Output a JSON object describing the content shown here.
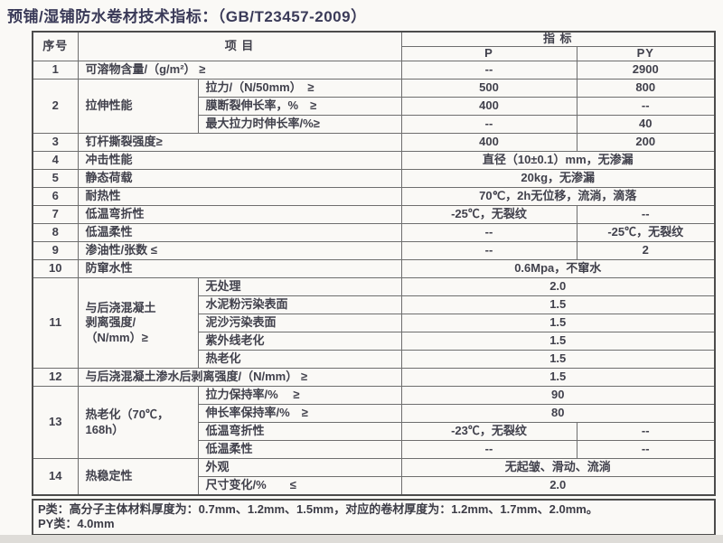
{
  "page": {
    "title": "预铺/湿铺防水卷材技术指标：（GB/T23457-2009）"
  },
  "colors": {
    "title_text": "#3a3a58",
    "table_text": "#41414c",
    "border": "#4c4c4c",
    "page_background": "#faf9f6"
  },
  "table": {
    "header": {
      "no": "序号",
      "item": "项 目",
      "index": "指 标",
      "p": "P",
      "py": "PY"
    },
    "rows": [
      {
        "no": "1",
        "item": "可溶物含量/（g/m²） ≥",
        "p": "--",
        "py": "2900"
      },
      {
        "no": "2",
        "cat": "拉伸性能",
        "sub": "拉力/（N/50mm）　≥",
        "p": "500",
        "py": "800"
      },
      {
        "sub": "膜断裂伸长率，%　≥",
        "p": "400",
        "py": "--"
      },
      {
        "sub": "最大拉力时伸长率/%≥",
        "p": "--",
        "py": "40"
      },
      {
        "no": "3",
        "item": "钉杆撕裂强度≥",
        "p": "400",
        "py": "200"
      },
      {
        "no": "4",
        "item": "冲击性能",
        "span": "直径（10±0.1）mm，无渗漏"
      },
      {
        "no": "5",
        "item": "静态荷载",
        "span": "20kg，无渗漏"
      },
      {
        "no": "6",
        "item": "耐热性",
        "span": "70℃，2h无位移，流淌，滴落"
      },
      {
        "no": "7",
        "item": "低温弯折性",
        "p": "-25℃，无裂纹",
        "py": "--"
      },
      {
        "no": "8",
        "item": "低温柔性",
        "p": "--",
        "py": "-25℃，无裂纹"
      },
      {
        "no": "9",
        "item": "渗油性/张数 ≤",
        "p": "--",
        "py": "2"
      },
      {
        "no": "10",
        "item": "防窜水性",
        "span": "0.6Mpa，不窜水"
      },
      {
        "no": "11",
        "cat": "与后浇混凝土\n剥离强度/\n（N/mm）≥",
        "sub": "无处理",
        "span": "2.0"
      },
      {
        "sub": "水泥粉污染表面",
        "span": "1.5"
      },
      {
        "sub": "泥沙污染表面",
        "span": "1.5"
      },
      {
        "sub": "紫外线老化",
        "span": "1.5"
      },
      {
        "sub": "热老化",
        "span": "1.5"
      },
      {
        "no": "12",
        "item": "与后浇混凝土渗水后剥离强度/（N/mm） ≥",
        "span": "1.5"
      },
      {
        "no": "13",
        "cat": "热老化（70℃，\n168h）",
        "sub": "拉力保持率/%　 ≥",
        "span": "90"
      },
      {
        "sub": "伸长率保持率/%　≥",
        "span": "80"
      },
      {
        "sub": "低温弯折性",
        "p": "-23℃，无裂纹",
        "py": "--"
      },
      {
        "sub": "低温柔性",
        "p": "--",
        "py": "--"
      },
      {
        "no": "14",
        "cat": "热稳定性",
        "sub": "外观",
        "span": "无起皱、滑动、流淌"
      },
      {
        "sub": "尺寸变化/%　　≤",
        "span": "2.0"
      }
    ]
  },
  "footer": {
    "line1": "P类：高分子主体材料厚度为：0.7mm、1.2mm、1.5mm，对应的卷材厚度为：1.2mm、1.7mm、2.0mm。",
    "line2": "PY类：4.0mm"
  }
}
